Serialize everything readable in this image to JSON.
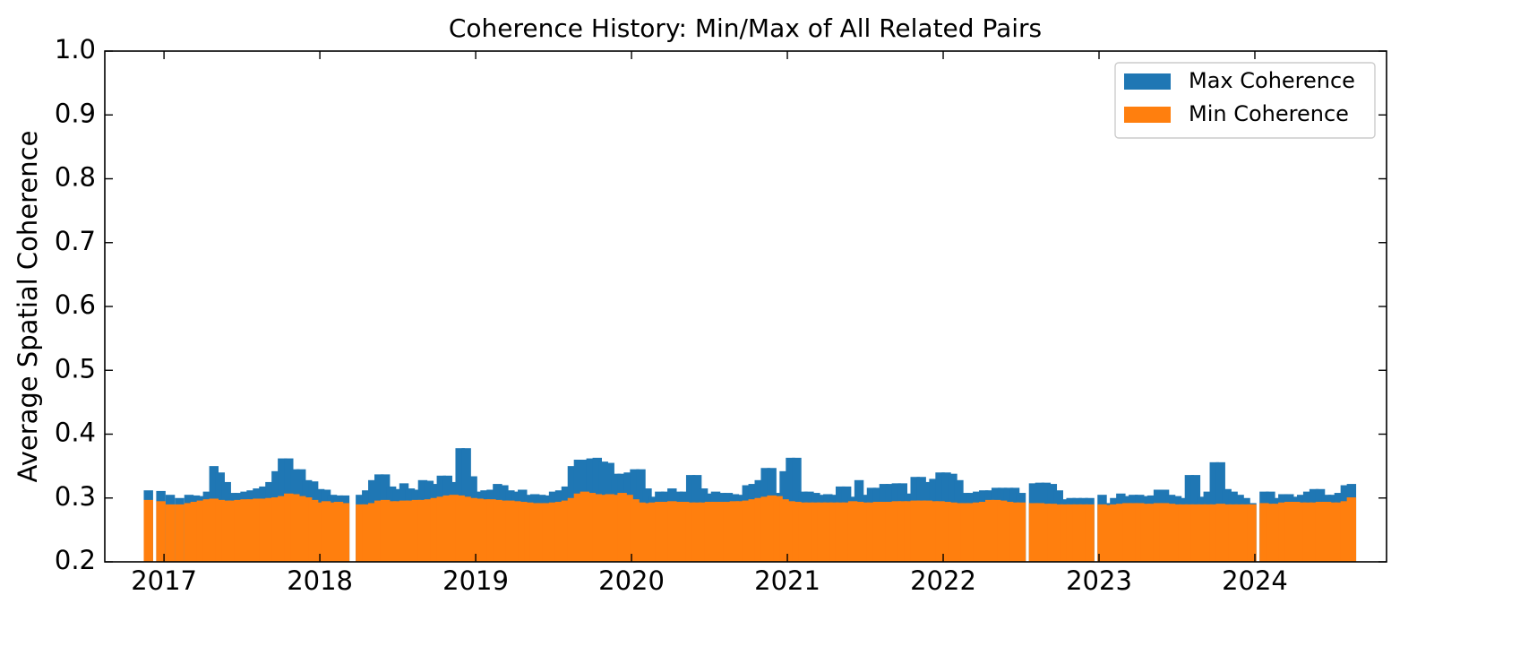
{
  "chart_data": {
    "type": "bar",
    "title": "Coherence History: Min/Max of All Related Pairs",
    "y_label": "Average Spatial Coherence",
    "xlim": [
      2016.62,
      2024.845
    ],
    "xticks": [
      2017,
      2018,
      2019,
      2020,
      2021,
      2022,
      2023,
      2024
    ],
    "ylim": [
      0.2,
      1.0
    ],
    "yticks": [
      0.2,
      0.3,
      0.4,
      0.5,
      0.6,
      0.7,
      0.8,
      0.9,
      {
        "value": 1.0,
        "label": "1.0"
      }
    ],
    "legend": "upper right",
    "x": [
      2016.9,
      2016.98,
      2017.04,
      2017.1,
      2017.16,
      2017.2,
      2017.24,
      2017.28,
      2017.32,
      2017.36,
      2017.4,
      2017.44,
      2017.48,
      2017.52,
      2017.56,
      2017.6,
      2017.64,
      2017.68,
      2017.72,
      2017.76,
      2017.8,
      2017.84,
      2017.88,
      2017.92,
      2017.96,
      2018,
      2018.04,
      2018.08,
      2018.12,
      2018.16,
      2018.26,
      2018.3,
      2018.34,
      2018.38,
      2018.42,
      2018.46,
      2018.5,
      2018.54,
      2018.58,
      2018.62,
      2018.66,
      2018.7,
      2018.74,
      2018.78,
      2018.82,
      2018.86,
      2018.9,
      2018.94,
      2018.98,
      2019.02,
      2019.06,
      2019.1,
      2019.14,
      2019.18,
      2019.22,
      2019.26,
      2019.3,
      2019.34,
      2019.38,
      2019.42,
      2019.46,
      2019.5,
      2019.54,
      2019.58,
      2019.62,
      2019.66,
      2019.7,
      2019.74,
      2019.78,
      2019.82,
      2019.86,
      2019.9,
      2019.94,
      2019.98,
      2020.02,
      2020.06,
      2020.1,
      2020.14,
      2020.18,
      2020.22,
      2020.26,
      2020.3,
      2020.34,
      2020.38,
      2020.42,
      2020.46,
      2020.5,
      2020.54,
      2020.58,
      2020.62,
      2020.66,
      2020.7,
      2020.74,
      2020.78,
      2020.82,
      2020.86,
      2020.9,
      2020.94,
      2020.98,
      2021.02,
      2021.06,
      2021.1,
      2021.14,
      2021.18,
      2021.22,
      2021.26,
      2021.3,
      2021.34,
      2021.38,
      2021.42,
      2021.46,
      2021.5,
      2021.54,
      2021.58,
      2021.62,
      2021.66,
      2021.7,
      2021.74,
      2021.78,
      2021.82,
      2021.86,
      2021.9,
      2021.94,
      2021.98,
      2022.02,
      2022.06,
      2022.1,
      2022.14,
      2022.18,
      2022.22,
      2022.26,
      2022.3,
      2022.34,
      2022.38,
      2022.42,
      2022.46,
      2022.5,
      2022.58,
      2022.62,
      2022.66,
      2022.7,
      2022.74,
      2022.78,
      2022.82,
      2022.86,
      2022.9,
      2022.94,
      2023.02,
      2023.06,
      2023.1,
      2023.14,
      2023.18,
      2023.22,
      2023.26,
      2023.3,
      2023.34,
      2023.38,
      2023.42,
      2023.46,
      2023.5,
      2023.54,
      2023.58,
      2023.62,
      2023.66,
      2023.7,
      2023.74,
      2023.78,
      2023.82,
      2023.86,
      2023.9,
      2023.94,
      2023.98,
      2024.06,
      2024.1,
      2024.14,
      2024.18,
      2024.22,
      2024.26,
      2024.3,
      2024.34,
      2024.38,
      2024.42,
      2024.46,
      2024.5,
      2024.54,
      2024.58,
      2024.62
    ],
    "series": [
      {
        "name": "Max Coherence",
        "color": "#1f77b4",
        "values": [
          0.312,
          0.311,
          0.305,
          0.3,
          0.305,
          0.304,
          0.303,
          0.31,
          0.35,
          0.34,
          0.325,
          0.308,
          0.308,
          0.31,
          0.312,
          0.315,
          0.318,
          0.325,
          0.342,
          0.362,
          0.362,
          0.345,
          0.345,
          0.328,
          0.326,
          0.314,
          0.313,
          0.305,
          0.304,
          0.304,
          0.305,
          0.312,
          0.328,
          0.337,
          0.337,
          0.318,
          0.314,
          0.323,
          0.315,
          0.313,
          0.328,
          0.327,
          0.322,
          0.335,
          0.335,
          0.325,
          0.378,
          0.378,
          0.334,
          0.31,
          0.312,
          0.313,
          0.322,
          0.32,
          0.312,
          0.31,
          0.313,
          0.305,
          0.306,
          0.305,
          0.304,
          0.31,
          0.312,
          0.318,
          0.35,
          0.36,
          0.36,
          0.362,
          0.363,
          0.357,
          0.355,
          0.338,
          0.338,
          0.34,
          0.345,
          0.345,
          0.315,
          0.302,
          0.31,
          0.31,
          0.315,
          0.31,
          0.31,
          0.336,
          0.336,
          0.315,
          0.307,
          0.31,
          0.308,
          0.308,
          0.306,
          0.305,
          0.32,
          0.322,
          0.328,
          0.347,
          0.347,
          0.308,
          0.342,
          0.363,
          0.363,
          0.31,
          0.31,
          0.308,
          0.305,
          0.306,
          0.305,
          0.318,
          0.318,
          0.302,
          0.328,
          0.305,
          0.316,
          0.316,
          0.322,
          0.322,
          0.323,
          0.323,
          0.307,
          0.333,
          0.333,
          0.325,
          0.33,
          0.34,
          0.34,
          0.338,
          0.328,
          0.308,
          0.308,
          0.31,
          0.312,
          0.312,
          0.316,
          0.316,
          0.316,
          0.316,
          0.308,
          0.323,
          0.324,
          0.324,
          0.322,
          0.312,
          0.298,
          0.3,
          0.3,
          0.3,
          0.3,
          0.305,
          0.292,
          0.3,
          0.307,
          0.303,
          0.305,
          0.305,
          0.303,
          0.304,
          0.313,
          0.313,
          0.305,
          0.303,
          0.3,
          0.336,
          0.336,
          0.302,
          0.31,
          0.356,
          0.356,
          0.314,
          0.31,
          0.305,
          0.3,
          0.292,
          0.31,
          0.31,
          0.3,
          0.306,
          0.306,
          0.302,
          0.305,
          0.31,
          0.314,
          0.314,
          0.305,
          0.305,
          0.308,
          0.32,
          0.322
        ]
      },
      {
        "name": "Min Coherence",
        "color": "#ff7f0e",
        "values": [
          0.297,
          0.295,
          0.29,
          0.29,
          0.292,
          0.294,
          0.296,
          0.298,
          0.299,
          0.297,
          0.296,
          0.296,
          0.297,
          0.298,
          0.298,
          0.299,
          0.299,
          0.3,
          0.301,
          0.303,
          0.307,
          0.306,
          0.303,
          0.301,
          0.297,
          0.293,
          0.295,
          0.293,
          0.294,
          0.292,
          0.29,
          0.29,
          0.292,
          0.296,
          0.297,
          0.295,
          0.295,
          0.296,
          0.296,
          0.297,
          0.297,
          0.298,
          0.3,
          0.302,
          0.304,
          0.305,
          0.304,
          0.302,
          0.3,
          0.299,
          0.298,
          0.298,
          0.297,
          0.296,
          0.296,
          0.295,
          0.294,
          0.293,
          0.292,
          0.292,
          0.292,
          0.293,
          0.294,
          0.296,
          0.3,
          0.307,
          0.31,
          0.308,
          0.306,
          0.305,
          0.306,
          0.305,
          0.308,
          0.305,
          0.298,
          0.293,
          0.292,
          0.293,
          0.294,
          0.294,
          0.295,
          0.294,
          0.294,
          0.293,
          0.293,
          0.293,
          0.294,
          0.294,
          0.294,
          0.294,
          0.295,
          0.295,
          0.296,
          0.298,
          0.3,
          0.302,
          0.304,
          0.303,
          0.298,
          0.295,
          0.294,
          0.293,
          0.293,
          0.293,
          0.293,
          0.293,
          0.293,
          0.293,
          0.293,
          0.295,
          0.294,
          0.293,
          0.293,
          0.294,
          0.294,
          0.294,
          0.295,
          0.295,
          0.295,
          0.296,
          0.296,
          0.296,
          0.295,
          0.295,
          0.294,
          0.293,
          0.292,
          0.292,
          0.292,
          0.293,
          0.294,
          0.297,
          0.297,
          0.296,
          0.294,
          0.293,
          0.293,
          0.292,
          0.292,
          0.291,
          0.291,
          0.29,
          0.29,
          0.29,
          0.29,
          0.29,
          0.29,
          0.29,
          0.289,
          0.29,
          0.291,
          0.292,
          0.292,
          0.292,
          0.291,
          0.291,
          0.292,
          0.292,
          0.291,
          0.29,
          0.29,
          0.29,
          0.29,
          0.29,
          0.29,
          0.29,
          0.291,
          0.29,
          0.29,
          0.29,
          0.29,
          0.29,
          0.292,
          0.291,
          0.291,
          0.293,
          0.294,
          0.294,
          0.293,
          0.293,
          0.293,
          0.294,
          0.294,
          0.293,
          0.293,
          0.295,
          0.301
        ]
      }
    ]
  }
}
